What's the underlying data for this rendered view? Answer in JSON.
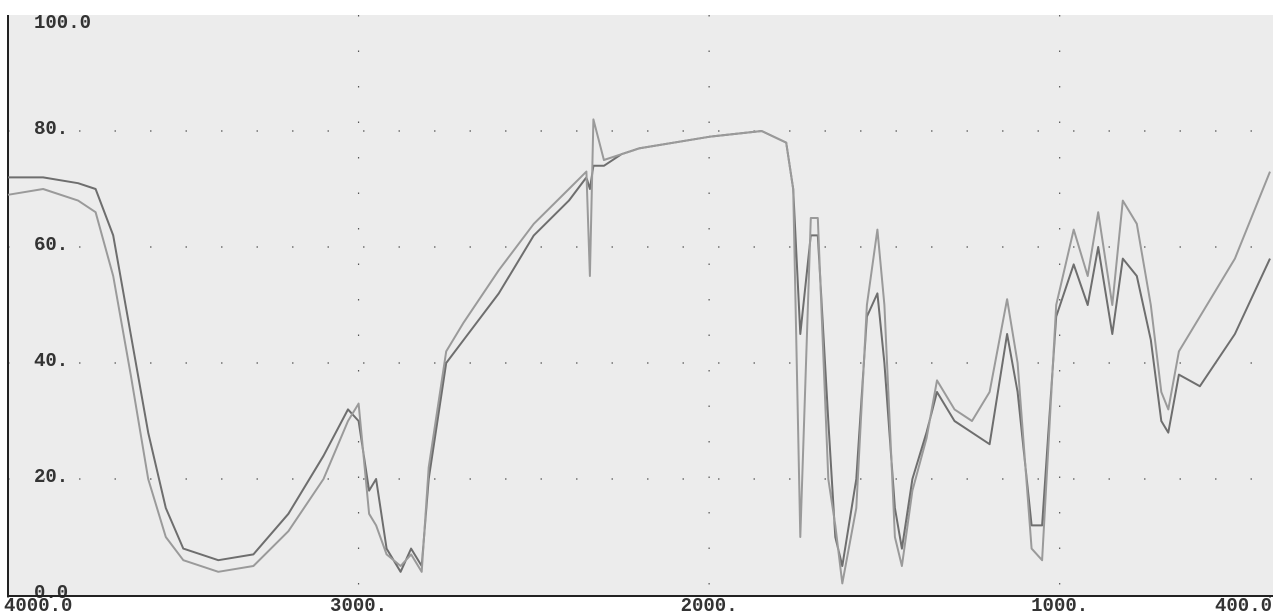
{
  "chart_data": {
    "type": "line",
    "x": [
      4000,
      3900,
      3800,
      3750,
      3700,
      3650,
      3600,
      3550,
      3500,
      3400,
      3300,
      3200,
      3100,
      3030,
      3000,
      2970,
      2950,
      2920,
      2880,
      2850,
      2820,
      2800,
      2750,
      2700,
      2600,
      2500,
      2400,
      2350,
      2340,
      2330,
      2300,
      2250,
      2200,
      2000,
      1850,
      1780,
      1760,
      1740,
      1710,
      1690,
      1660,
      1640,
      1620,
      1580,
      1550,
      1520,
      1500,
      1470,
      1450,
      1420,
      1380,
      1350,
      1300,
      1250,
      1200,
      1150,
      1120,
      1080,
      1050,
      1010,
      960,
      920,
      890,
      850,
      820,
      780,
      740,
      710,
      690,
      660,
      600,
      500,
      400
    ],
    "series": [
      {
        "color": "#6e6e6e",
        "values": [
          72,
          72,
          71,
          70,
          62,
          45,
          28,
          15,
          8,
          6,
          7,
          14,
          24,
          32,
          30,
          18,
          20,
          8,
          4,
          8,
          5,
          20,
          40,
          44,
          52,
          62,
          68,
          72,
          70,
          74,
          74,
          76,
          77,
          79,
          80,
          78,
          70,
          45,
          62,
          62,
          30,
          10,
          5,
          20,
          48,
          52,
          40,
          15,
          8,
          20,
          28,
          35,
          30,
          28,
          26,
          45,
          35,
          12,
          12,
          48,
          57,
          50,
          60,
          45,
          58,
          55,
          44,
          30,
          28,
          38,
          36,
          45,
          58
        ]
      },
      {
        "color": "#9a9a9a",
        "values": [
          69,
          70,
          68,
          66,
          55,
          38,
          20,
          10,
          6,
          4,
          5,
          11,
          20,
          30,
          33,
          14,
          12,
          7,
          5,
          7,
          4,
          22,
          42,
          47,
          56,
          64,
          70,
          73,
          55,
          82,
          75,
          76,
          77,
          79,
          80,
          78,
          70,
          10,
          65,
          65,
          20,
          12,
          2,
          15,
          50,
          63,
          50,
          10,
          5,
          18,
          27,
          37,
          32,
          30,
          35,
          51,
          40,
          8,
          6,
          50,
          63,
          55,
          66,
          50,
          68,
          64,
          50,
          35,
          32,
          42,
          48,
          58,
          73
        ]
      }
    ],
    "xlim": [
      4000,
      400
    ],
    "ylim": [
      0,
      100
    ],
    "xticks": [
      {
        "value": 4000,
        "label": "4000.0"
      },
      {
        "value": 3000,
        "label": "3000."
      },
      {
        "value": 2000,
        "label": "2000."
      },
      {
        "value": 1000,
        "label": "1000."
      },
      {
        "value": 400,
        "label": "400.0"
      }
    ],
    "yticks": [
      {
        "value": 0,
        "label": "0.0"
      },
      {
        "value": 20,
        "label": "20."
      },
      {
        "value": 40,
        "label": "40."
      },
      {
        "value": 60,
        "label": "60."
      },
      {
        "value": 80,
        "label": "80."
      },
      {
        "value": 100,
        "label": "100.0"
      }
    ],
    "grid": true
  }
}
